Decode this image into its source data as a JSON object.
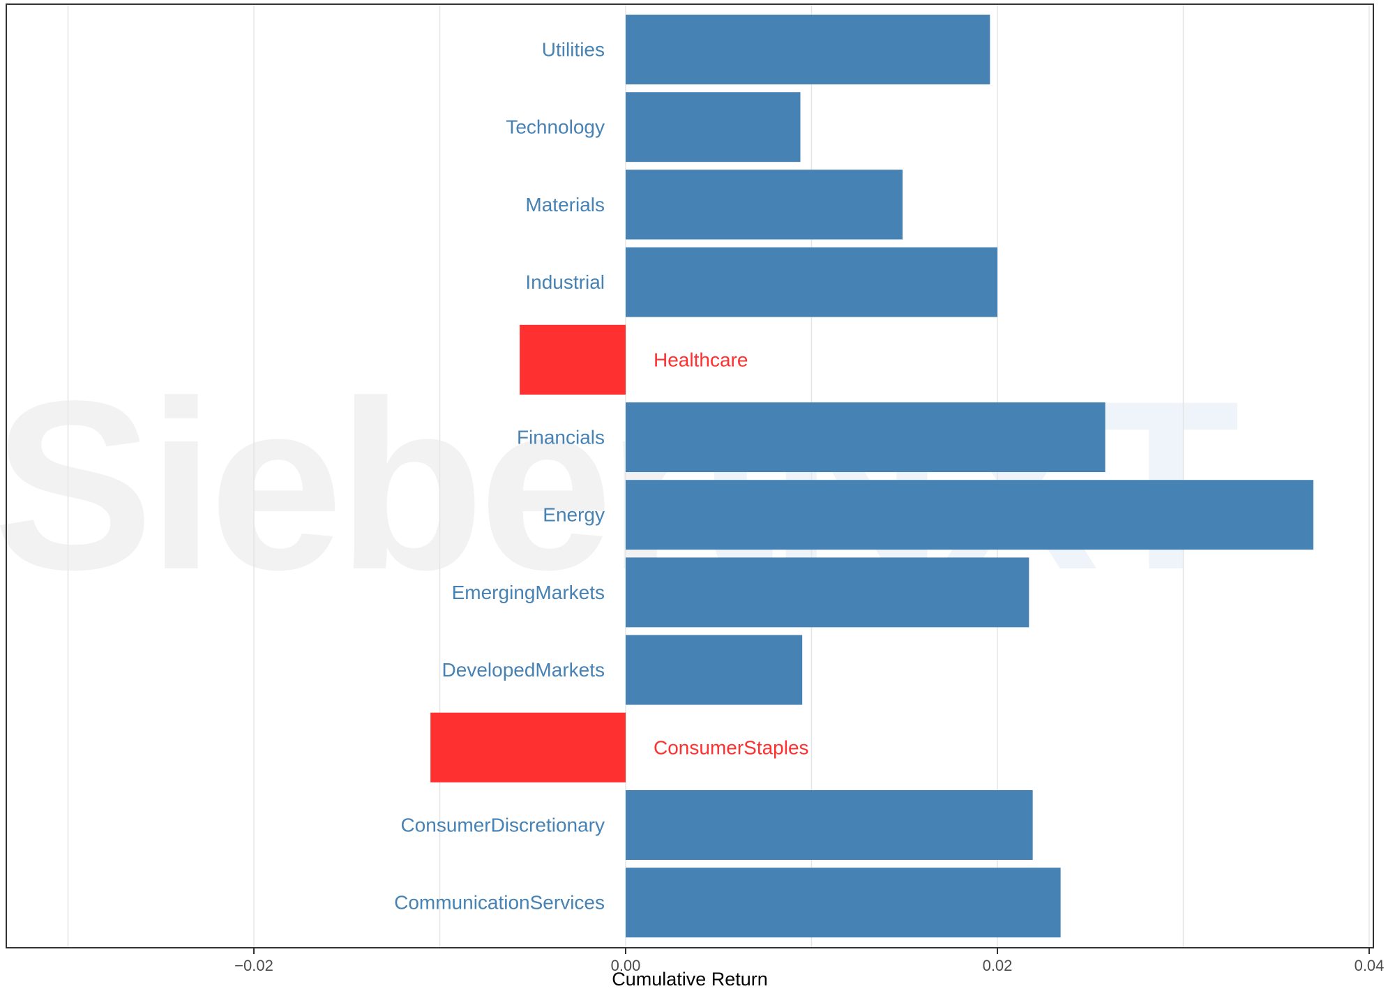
{
  "watermark": "SiebertNXT",
  "colors": {
    "positive": "#4682B4",
    "negative": "#FF3030",
    "grid": "#E5E5E5",
    "watermark_main": "#F2F2F2",
    "watermark_accent": "#EEF4FA",
    "frame": "#333333"
  },
  "chart_data": {
    "type": "bar",
    "orientation": "horizontal",
    "title": "",
    "xlabel": "Cumulative Return",
    "ylabel": "",
    "xlim": [
      -0.034,
      0.0405
    ],
    "xticks": [
      -0.02,
      0.0,
      0.02,
      0.04
    ],
    "xtick_labels": [
      "−0.02",
      "0.00",
      "0.02",
      "0.04"
    ],
    "grid": true,
    "legend": "none",
    "categories": [
      "Utilities",
      "Technology",
      "Materials",
      "Industrial",
      "Healthcare",
      "Financials",
      "Energy",
      "EmergingMarkets",
      "DevelopedMarkets",
      "ConsumerStaples",
      "ConsumerDiscretionary",
      "CommunicationServices"
    ],
    "values": [
      0.0196,
      0.0094,
      0.0149,
      0.02,
      -0.0057,
      0.0258,
      0.037,
      0.0217,
      0.0095,
      -0.0105,
      0.0219,
      0.0234
    ]
  }
}
